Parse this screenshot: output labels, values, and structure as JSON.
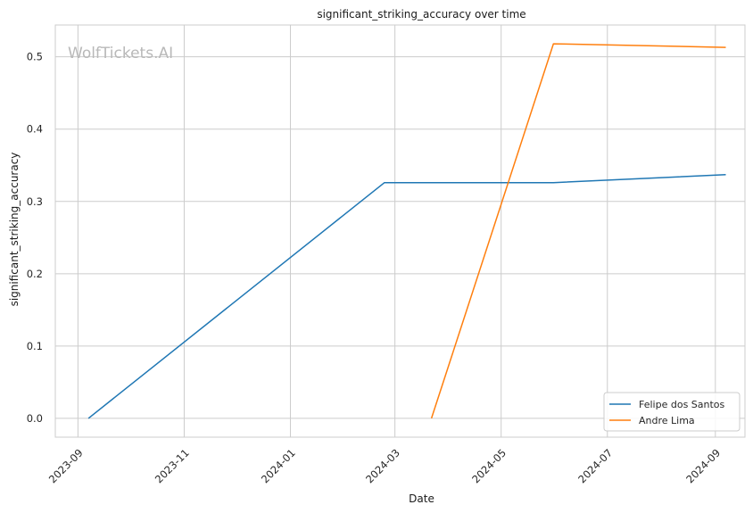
{
  "chart_data": {
    "type": "line",
    "title": "significant_striking_accuracy over time",
    "xlabel": "Date",
    "ylabel": "significant_striking_accuracy",
    "watermark": "WolfTickets.AI",
    "x_axis_kind": "date",
    "xlim": [
      "2023-08-19",
      "2024-09-18"
    ],
    "ylim": [
      -0.026,
      0.544
    ],
    "x_ticks": [
      "2023-09",
      "2023-11",
      "2024-01",
      "2024-03",
      "2024-05",
      "2024-07",
      "2024-09"
    ],
    "y_ticks": [
      0.0,
      0.1,
      0.2,
      0.3,
      0.4,
      0.5
    ],
    "y_tick_labels": [
      "0.0",
      "0.1",
      "0.2",
      "0.3",
      "0.4",
      "0.5"
    ],
    "grid": true,
    "legend_position": "bottom-right",
    "series": [
      {
        "name": "Felipe dos Santos",
        "color": "#1f77b4",
        "points": [
          {
            "x": "2023-09-07",
            "y": 0.0
          },
          {
            "x": "2024-02-24",
            "y": 0.326
          },
          {
            "x": "2024-05-31",
            "y": 0.326
          },
          {
            "x": "2024-09-07",
            "y": 0.337
          }
        ]
      },
      {
        "name": "Andre Lima",
        "color": "#ff7f0e",
        "points": [
          {
            "x": "2024-03-22",
            "y": 0.0
          },
          {
            "x": "2024-05-31",
            "y": 0.518
          },
          {
            "x": "2024-09-07",
            "y": 0.513
          }
        ]
      }
    ]
  }
}
